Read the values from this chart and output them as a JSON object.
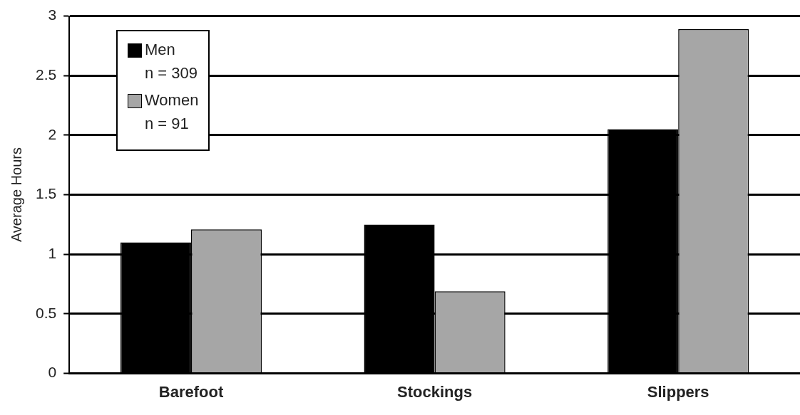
{
  "chart_data": {
    "type": "bar",
    "ylabel": "Average Hours",
    "categories": [
      "Barefoot",
      "Stockings",
      "Slippers"
    ],
    "series": [
      {
        "name": "Men\nn = 309",
        "color": "#000000",
        "values": [
          1.1,
          1.25,
          2.05
        ]
      },
      {
        "name": "Women\nn = 91",
        "color": "#a6a6a6",
        "values": [
          1.21,
          0.69,
          2.89
        ]
      }
    ],
    "ylim": [
      0,
      3
    ],
    "yticks": [
      0,
      0.5,
      1,
      1.5,
      2,
      2.5,
      3
    ],
    "grid": "y",
    "legend": "top left"
  }
}
